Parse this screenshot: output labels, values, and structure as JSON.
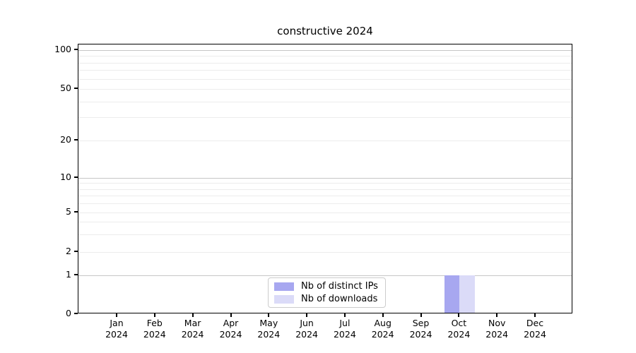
{
  "chart_data": {
    "type": "bar",
    "title": "constructive 2024",
    "months": [
      "Jan",
      "Feb",
      "Mar",
      "Apr",
      "May",
      "Jun",
      "Jul",
      "Aug",
      "Sep",
      "Oct",
      "Nov",
      "Dec"
    ],
    "year": "2024",
    "categories": [
      "Jan 2024",
      "Feb 2024",
      "Mar 2024",
      "Apr 2024",
      "May 2024",
      "Jun 2024",
      "Jul 2024",
      "Aug 2024",
      "Sep 2024",
      "Oct 2024",
      "Nov 2024",
      "Dec 2024"
    ],
    "series": [
      {
        "name": "Nb of distinct IPs",
        "color": "#a7a7f0",
        "values": [
          0,
          0,
          0,
          0,
          0,
          0,
          0,
          0,
          0,
          1,
          0,
          0
        ]
      },
      {
        "name": "Nb of downloads",
        "color": "#dbdbf8",
        "values": [
          0,
          0,
          0,
          0,
          0,
          0,
          0,
          0,
          0,
          1,
          0,
          0
        ]
      }
    ],
    "xlabel": "",
    "ylabel": "",
    "yaxis": {
      "scale": "symlog",
      "ylim": [
        0,
        110
      ],
      "tick_values": [
        0,
        1,
        2,
        5,
        10,
        20,
        50,
        100
      ],
      "tick_labels": [
        "0",
        "1",
        "2",
        "5",
        "10",
        "20",
        "50",
        "100"
      ],
      "major_grid_values": [
        1,
        10,
        100
      ],
      "minor_grid_values": [
        2,
        3,
        4,
        5,
        6,
        7,
        8,
        9,
        20,
        30,
        40,
        50,
        60,
        70,
        80,
        90
      ]
    },
    "grid": "horizontal major+minor",
    "legend": {
      "position": "lower center",
      "entries": [
        "Nb of distinct IPs",
        "Nb of downloads"
      ]
    }
  }
}
